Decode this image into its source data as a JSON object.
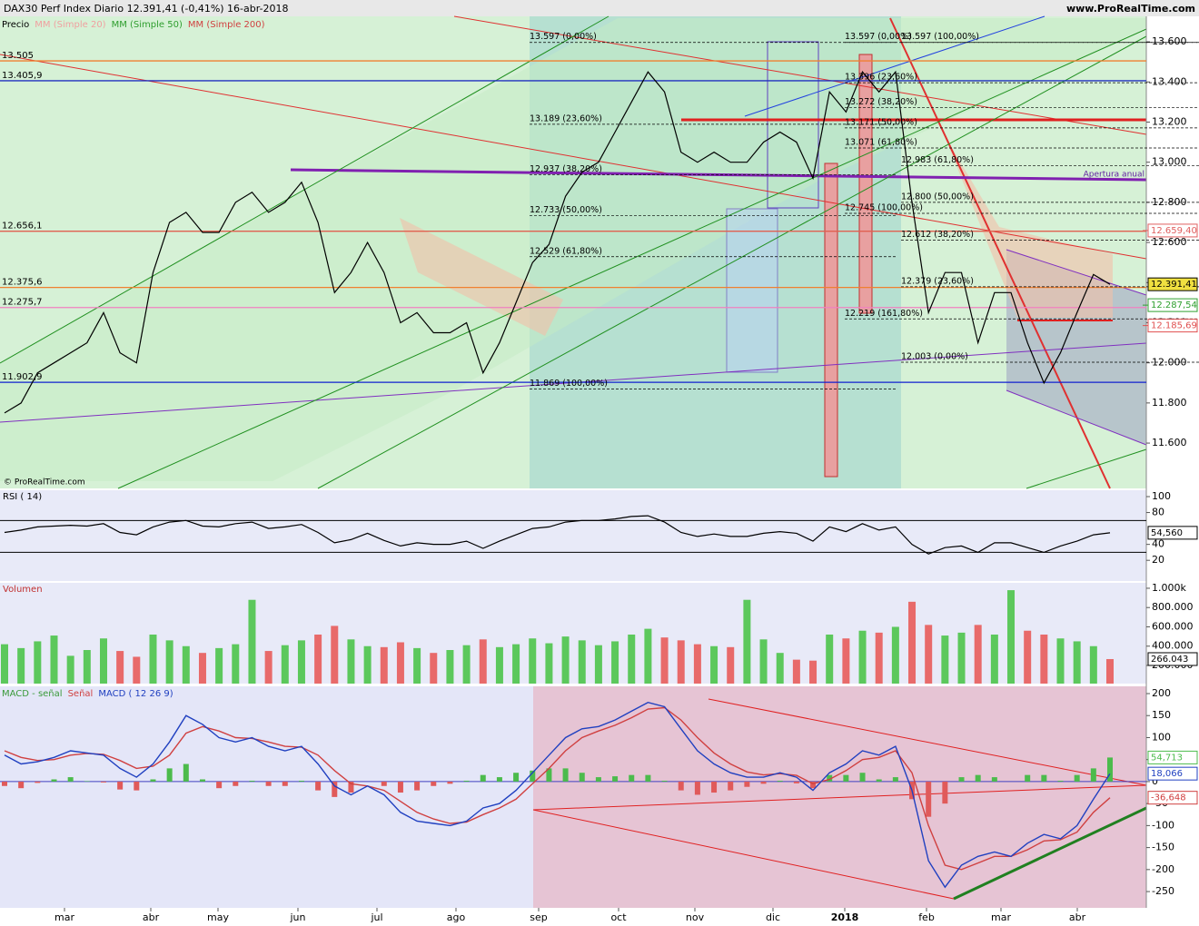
{
  "header": {
    "title": "DAX30 Perf Index  Diario  12.391,41 (-0,41%)  16-abr-2018",
    "site": "www.ProRealTime.com",
    "copyright": "© ProRealTime.com"
  },
  "chart_data": [
    {
      "type": "line",
      "legend": [
        "Precio",
        "MM (Simple 20)",
        "MM (Simple 50)",
        "MM (Simple 200)"
      ],
      "legend_colors": [
        "#000000",
        "#f0a0a0",
        "#2e9e2e",
        "#d04040"
      ],
      "series": [
        {
          "name": "DAX30 Perf Index",
          "color": "#000000",
          "last_label": "12.391,41",
          "values": [
            11750,
            11800,
            11950,
            12000,
            12050,
            12100,
            12250,
            12050,
            12000,
            12450,
            12700,
            12750,
            12650,
            12650,
            12800,
            12850,
            12750,
            12800,
            12900,
            12700,
            12350,
            12450,
            12600,
            12450,
            12200,
            12250,
            12150,
            12150,
            12200,
            11950,
            12100,
            12300,
            12500,
            12590,
            12830,
            12950,
            13000,
            13150,
            13300,
            13450,
            13350,
            13050,
            13000,
            13050,
            13000,
            13000,
            13100,
            13150,
            13100,
            12920,
            13350,
            13250,
            13450,
            13350,
            13450,
            12800,
            12250,
            12450,
            12450,
            12100,
            12350,
            12350,
            12100,
            11900,
            12050,
            12250,
            12440,
            12391.41
          ]
        }
      ],
      "ylim": [
        11374,
        13727
      ],
      "yticks": [
        {
          "value": 11600,
          "label": "11.600"
        },
        {
          "value": 11800,
          "label": "11.800"
        },
        {
          "value": 12000,
          "label": "12.000"
        },
        {
          "value": 12200,
          "label": "12.200"
        },
        {
          "value": 12400,
          "label": "12.400"
        },
        {
          "value": 12600,
          "label": "12.600"
        },
        {
          "value": 12800,
          "label": "12.800"
        },
        {
          "value": 13000,
          "label": "13.000"
        },
        {
          "value": 13200,
          "label": "13.200"
        },
        {
          "value": 13400,
          "label": "13.400"
        },
        {
          "value": 13600,
          "label": "13.600"
        }
      ],
      "levels": [
        {
          "value": 13505,
          "label": "13.505",
          "color": "#f08030"
        },
        {
          "value": 13405.9,
          "label": "13.405,9",
          "color": "#2030c0"
        },
        {
          "value": 12656.1,
          "label": "12.656,1",
          "color": "#e06050"
        },
        {
          "value": 12375.6,
          "label": "12.375,6",
          "color": "#f08030"
        },
        {
          "value": 12275.7,
          "label": "12.275,7",
          "color": "#f080c0"
        },
        {
          "value": 11902.9,
          "label": "11.902,9",
          "color": "#1020d0"
        }
      ],
      "value_boxes": [
        {
          "value": 12659.4,
          "label": "12.659,40",
          "color": "#e06060"
        },
        {
          "value": 12287.54,
          "label": "12.287,54",
          "color": "#30a030"
        },
        {
          "value": 12185.69,
          "label": "12.185,69",
          "color": "#e05050"
        }
      ],
      "annotations": [
        {
          "text": "13.597 (0,00%)",
          "value": 13597
        },
        {
          "text": "13.189 (23,60%)",
          "value": 13189
        },
        {
          "text": "12.937 (38,20%)",
          "value": 12937
        },
        {
          "text": "12.733 (50,00%)",
          "value": 12733
        },
        {
          "text": "12.529 (61,80%)",
          "value": 12529
        },
        {
          "text": "11.869 (100,00%)",
          "value": 11869
        },
        {
          "text": "13.597 (0,00%)",
          "value": 13597
        },
        {
          "text": "13.396 (23,60%)",
          "value": 13396
        },
        {
          "text": "13.272 (38,20%)",
          "value": 13272
        },
        {
          "text": "13.171 (50,00%)",
          "value": 13171
        },
        {
          "text": "13.071 (61,80%)",
          "value": 13071
        },
        {
          "text": "12.745 (100,00%)",
          "value": 12745
        },
        {
          "text": "12.219 (161,80%)",
          "value": 12219
        },
        {
          "text": "13.597 (100,00%)",
          "value": 13597
        },
        {
          "text": "12.983 (61,80%)",
          "value": 12983
        },
        {
          "text": "12.800 (50,00%)",
          "value": 12800
        },
        {
          "text": "12.612 (38,20%)",
          "value": 12612
        },
        {
          "text": "12.379 (23,60%)",
          "value": 12379
        },
        {
          "text": "12.003 (0,00%)",
          "value": 12003
        }
      ],
      "annual_open_label": "Apertura anual"
    },
    {
      "type": "line",
      "title": "RSI ( 14)",
      "series": [
        {
          "name": "RSI",
          "color": "#000000",
          "last_label": "54,560",
          "values": [
            55,
            58,
            62,
            63,
            64,
            63,
            66,
            55,
            52,
            62,
            68,
            70,
            63,
            62,
            66,
            68,
            60,
            62,
            65,
            55,
            42,
            46,
            54,
            45,
            38,
            42,
            40,
            40,
            44,
            35,
            44,
            52,
            60,
            62,
            68,
            70,
            70,
            72,
            75,
            76,
            68,
            55,
            50,
            53,
            50,
            50,
            54,
            56,
            54,
            44,
            62,
            56,
            66,
            58,
            62,
            40,
            28,
            36,
            38,
            30,
            42,
            42,
            36,
            30,
            38,
            44,
            52,
            54.56
          ]
        }
      ],
      "ylim": [
        -6,
        108
      ],
      "yticks": [
        20,
        40,
        80,
        100
      ],
      "levels": [
        30,
        70
      ]
    },
    {
      "type": "bar",
      "title": "Volumen",
      "up_color": "#5cc85c",
      "down_color": "#e86a6a",
      "last_label": "266.043",
      "values": [
        420000,
        380000,
        450000,
        510000,
        300000,
        360000,
        480000,
        350000,
        290000,
        520000,
        460000,
        400000,
        330000,
        380000,
        420000,
        880000,
        350000,
        410000,
        460000,
        520000,
        610000,
        470000,
        400000,
        390000,
        440000,
        380000,
        330000,
        360000,
        410000,
        470000,
        390000,
        420000,
        480000,
        430000,
        500000,
        460000,
        410000,
        450000,
        520000,
        580000,
        490000,
        460000,
        420000,
        400000,
        390000,
        880000,
        470000,
        330000,
        260000,
        250000,
        520000,
        480000,
        560000,
        540000,
        600000,
        860000,
        620000,
        510000,
        540000,
        620000,
        520000,
        980000,
        560000,
        520000,
        480000,
        450000,
        400000,
        266043
      ],
      "ylim": [
        12000,
        1056000
      ],
      "yticks": [
        {
          "value": 200000,
          "label": "200.000"
        },
        {
          "value": 400000,
          "label": "400.000"
        },
        {
          "value": 600000,
          "label": "600.000"
        },
        {
          "value": 800000,
          "label": "800.000"
        },
        {
          "value": 1000000,
          "label": "1.000k"
        }
      ]
    },
    {
      "type": "macd",
      "legend": [
        "MACD - señal",
        "Señal",
        "MACD ( 12 26 9)"
      ],
      "legend_colors": [
        "#3a9a3a",
        "#d04040",
        "#2040c0"
      ],
      "series": [
        {
          "name": "MACD",
          "color": "#2040c0",
          "last_label": "18,066",
          "values": [
            60,
            40,
            45,
            55,
            70,
            65,
            60,
            30,
            10,
            40,
            90,
            150,
            130,
            100,
            90,
            100,
            80,
            70,
            80,
            40,
            -10,
            -30,
            -10,
            -30,
            -70,
            -90,
            -95,
            -100,
            -90,
            -60,
            -50,
            -20,
            20,
            60,
            100,
            120,
            125,
            140,
            160,
            180,
            170,
            120,
            70,
            40,
            20,
            10,
            10,
            20,
            10,
            -20,
            20,
            40,
            70,
            60,
            80,
            -20,
            -180,
            -240,
            -190,
            -170,
            -160,
            -170,
            -140,
            -120,
            -130,
            -100,
            -40,
            18.066
          ]
        },
        {
          "name": "Señal",
          "color": "#d04040",
          "last_label": "-36,648",
          "values": [
            70,
            55,
            48,
            50,
            60,
            64,
            62,
            48,
            30,
            35,
            60,
            110,
            125,
            115,
            100,
            98,
            90,
            80,
            78,
            60,
            25,
            -5,
            -10,
            -20,
            -45,
            -70,
            -85,
            -95,
            -92,
            -75,
            -60,
            -40,
            -5,
            30,
            70,
            100,
            115,
            128,
            145,
            165,
            168,
            140,
            100,
            65,
            40,
            22,
            15,
            18,
            14,
            -5,
            5,
            25,
            50,
            55,
            70,
            20,
            -100,
            -190,
            -200,
            -185,
            -170,
            -170,
            -155,
            -135,
            -132,
            -115,
            -70,
            -36.648
          ]
        },
        {
          "name": "MACD - señal",
          "color": "#4cbb4c",
          "down_color": "#e05a5a",
          "last_label": "54,713",
          "values": [
            -10,
            -15,
            -3,
            5,
            10,
            1,
            -2,
            -18,
            -20,
            5,
            30,
            40,
            5,
            -15,
            -10,
            2,
            -10,
            -10,
            2,
            -20,
            -35,
            -25,
            0,
            -10,
            -25,
            -20,
            -10,
            -5,
            2,
            15,
            10,
            20,
            25,
            30,
            30,
            20,
            10,
            12,
            15,
            15,
            2,
            -20,
            -30,
            -25,
            -20,
            -12,
            -5,
            2,
            -4,
            -15,
            15,
            15,
            20,
            5,
            10,
            -40,
            -80,
            -50,
            10,
            15,
            10,
            0,
            15,
            15,
            2,
            15,
            30,
            54.713
          ]
        }
      ],
      "ylim": [
        -287,
        216.5
      ],
      "yticks": [
        -250,
        -200,
        -150,
        -100,
        -50,
        0,
        50,
        100,
        150,
        200
      ],
      "x_labels": [
        "mar",
        "abr",
        "may",
        "jun",
        "jul",
        "ago",
        "sep",
        "oct",
        "nov",
        "dic",
        "2018",
        "feb",
        "mar",
        "abr"
      ]
    }
  ]
}
